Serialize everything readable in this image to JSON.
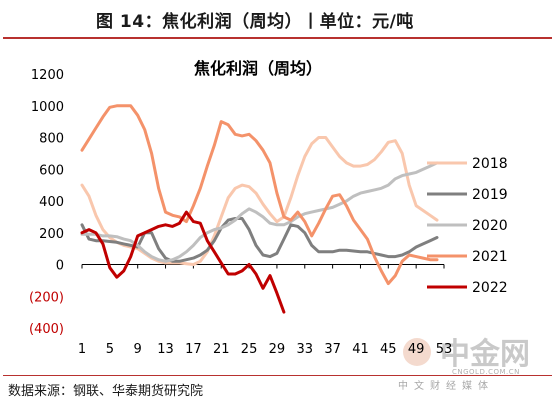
{
  "header": {
    "title": "图 14：焦化利润（周均）丨单位：元/吨"
  },
  "footer": {
    "source": "数据来源：钢联、华泰期货研究院"
  },
  "watermark": {
    "brand": "中金网",
    "url": "CNGOLD.COM.CN",
    "tagline": "中文财经媒体"
  },
  "colors": {
    "accent": "#b8312f",
    "axis": "#000000"
  },
  "chart_data": {
    "type": "line",
    "title": "焦化利润（周均）",
    "xlabel": "",
    "ylabel": "",
    "xlim": [
      1,
      53
    ],
    "ylim": [
      -400,
      1200
    ],
    "x_ticks": [
      1,
      5,
      9,
      13,
      17,
      21,
      25,
      29,
      33,
      37,
      41,
      45,
      49,
      53
    ],
    "x_tick_labels": [
      "1",
      "5",
      "9",
      "13",
      "17",
      "21",
      "25",
      "29",
      "33",
      "37",
      "41",
      "45",
      "49",
      "53"
    ],
    "y_ticks": [
      1200,
      1000,
      800,
      600,
      400,
      200,
      0,
      -200,
      -400
    ],
    "y_tick_labels": [
      "1200",
      "1000",
      "800",
      "600",
      "400",
      "200",
      "0",
      "(200)",
      "(400)"
    ],
    "y_tick_colors": [
      "#000000",
      "#000000",
      "#000000",
      "#000000",
      "#000000",
      "#000000",
      "#000000",
      "#c00000",
      "#c00000"
    ],
    "legend_position": "right",
    "grid": false,
    "series": [
      {
        "name": "2018",
        "color": "#f9c7ad",
        "x": [
          1,
          2,
          3,
          4,
          5,
          6,
          7,
          8,
          9,
          10,
          11,
          12,
          13,
          14,
          15,
          16,
          17,
          18,
          19,
          20,
          21,
          22,
          23,
          24,
          25,
          26,
          27,
          28,
          29,
          30,
          31,
          32,
          33,
          34,
          35,
          36,
          37,
          38,
          39,
          40,
          41,
          42,
          43,
          44,
          45,
          46,
          47,
          48,
          49,
          50,
          51,
          52
        ],
        "values": [
          500,
          430,
          310,
          220,
          170,
          140,
          120,
          110,
          100,
          70,
          40,
          20,
          10,
          10,
          10,
          5,
          0,
          20,
          80,
          180,
          300,
          420,
          480,
          500,
          490,
          450,
          380,
          320,
          270,
          300,
          420,
          560,
          680,
          760,
          800,
          800,
          740,
          680,
          640,
          620,
          620,
          630,
          660,
          710,
          770,
          780,
          700,
          500,
          370,
          340,
          310,
          280
        ]
      },
      {
        "name": "2019",
        "color": "#7f7f7f",
        "x": [
          1,
          2,
          3,
          4,
          5,
          6,
          7,
          8,
          9,
          10,
          11,
          12,
          13,
          14,
          15,
          16,
          17,
          18,
          19,
          20,
          21,
          22,
          23,
          24,
          25,
          26,
          27,
          28,
          29,
          30,
          31,
          32,
          33,
          34,
          35,
          36,
          37,
          38,
          39,
          40,
          41,
          42,
          43,
          44,
          45,
          46,
          47,
          48,
          49,
          50,
          51,
          52
        ],
        "values": [
          250,
          160,
          150,
          150,
          145,
          140,
          130,
          120,
          110,
          200,
          200,
          100,
          40,
          20,
          20,
          30,
          40,
          60,
          90,
          150,
          230,
          280,
          290,
          290,
          220,
          120,
          60,
          50,
          70,
          160,
          250,
          240,
          200,
          120,
          80,
          80,
          80,
          90,
          90,
          85,
          80,
          80,
          70,
          60,
          50,
          50,
          60,
          80,
          110,
          130,
          150,
          170
        ]
      },
      {
        "name": "2020",
        "color": "#bfbfbf",
        "x": [
          1,
          2,
          3,
          4,
          5,
          6,
          7,
          8,
          9,
          10,
          11,
          12,
          13,
          14,
          15,
          16,
          17,
          18,
          19,
          20,
          21,
          22,
          23,
          24,
          25,
          26,
          27,
          28,
          29,
          30,
          31,
          32,
          33,
          34,
          35,
          36,
          37,
          38,
          39,
          40,
          41,
          42,
          43,
          44,
          45,
          46,
          47,
          48,
          49,
          50,
          51,
          52
        ],
        "values": [
          190,
          190,
          190,
          180,
          180,
          175,
          160,
          150,
          120,
          80,
          50,
          30,
          20,
          30,
          50,
          80,
          120,
          170,
          200,
          220,
          230,
          250,
          280,
          320,
          350,
          330,
          300,
          260,
          250,
          250,
          270,
          300,
          320,
          330,
          340,
          350,
          360,
          380,
          400,
          430,
          450,
          460,
          470,
          480,
          500,
          540,
          560,
          570,
          580,
          600,
          620,
          640
        ]
      },
      {
        "name": "2021",
        "color": "#f4926a",
        "x": [
          1,
          2,
          3,
          4,
          5,
          6,
          7,
          8,
          9,
          10,
          11,
          12,
          13,
          14,
          15,
          16,
          17,
          18,
          19,
          20,
          21,
          22,
          23,
          24,
          25,
          26,
          27,
          28,
          29,
          30,
          31,
          32,
          33,
          34,
          35,
          36,
          37,
          38,
          39,
          40,
          41,
          42,
          43,
          44,
          45,
          46,
          47,
          48,
          49,
          50,
          51,
          52
        ],
        "values": [
          720,
          790,
          860,
          930,
          990,
          1000,
          1000,
          1000,
          940,
          850,
          700,
          480,
          330,
          310,
          300,
          270,
          370,
          480,
          620,
          750,
          900,
          880,
          820,
          810,
          820,
          780,
          720,
          640,
          450,
          300,
          280,
          330,
          270,
          180,
          260,
          350,
          430,
          440,
          370,
          280,
          220,
          160,
          50,
          -40,
          -120,
          -70,
          20,
          60,
          50,
          40,
          30,
          30
        ]
      },
      {
        "name": "2022",
        "color": "#c00000",
        "x": [
          1,
          2,
          3,
          4,
          5,
          6,
          7,
          8,
          9,
          10,
          11,
          12,
          13,
          14,
          15,
          16,
          17,
          18,
          19,
          20,
          21,
          22,
          23,
          24,
          25,
          26,
          27,
          28,
          29,
          30
        ],
        "values": [
          200,
          220,
          200,
          130,
          -20,
          -80,
          -40,
          50,
          180,
          200,
          220,
          240,
          250,
          240,
          260,
          330,
          270,
          260,
          150,
          80,
          10,
          -60,
          -60,
          -40,
          0,
          -60,
          -150,
          -70,
          -180,
          -300
        ]
      }
    ]
  }
}
